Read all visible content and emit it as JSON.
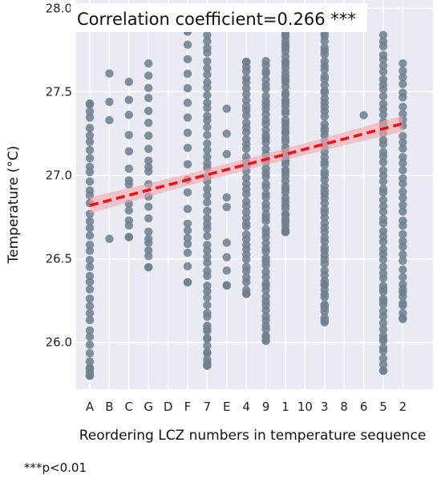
{
  "chart_data": {
    "type": "scatter",
    "title": "Correlation coefficient=0.266 ***",
    "xlabel": "Reordering LCZ numbers in temperature sequence",
    "ylabel": "Temperature (°C)",
    "categories": [
      "A",
      "B",
      "C",
      "G",
      "D",
      "F",
      "7",
      "E",
      "4",
      "9",
      "1",
      "10",
      "3",
      "8",
      "6",
      "5",
      "2"
    ],
    "ylim": [
      25.72,
      28.05
    ],
    "yticks": [
      26.0,
      26.5,
      27.0,
      27.5,
      28.0
    ],
    "ytick_labels": [
      "26.0",
      "26.5",
      "27.0",
      "27.5",
      "28.0"
    ],
    "grid": true,
    "point_color": "#6e8191",
    "series": [
      {
        "category": "A",
        "min": 25.8,
        "max": 27.43,
        "count": 40,
        "y_extra": [
          25.8,
          25.82,
          25.84,
          27.43
        ]
      },
      {
        "category": "B",
        "min": 26.62,
        "max": 27.61,
        "count": 4,
        "y_extra": [
          26.62,
          27.33,
          27.44,
          27.61
        ]
      },
      {
        "category": "C",
        "min": 26.63,
        "max": 27.56,
        "count": 14,
        "y_extra": [
          26.63,
          26.7,
          26.79,
          26.97
        ]
      },
      {
        "category": "G",
        "min": 26.45,
        "max": 27.67,
        "count": 22,
        "y_extra": [
          26.45,
          26.55,
          26.62,
          27.05
        ]
      },
      {
        "category": "D",
        "min": null,
        "max": null,
        "count": 0,
        "y_extra": []
      },
      {
        "category": "F",
        "min": 26.36,
        "max": 27.87,
        "count": 22,
        "y_extra": [
          26.36,
          26.59,
          26.67,
          27.87
        ]
      },
      {
        "category": "7",
        "min": 25.86,
        "max": 27.85,
        "count": 55,
        "y_extra": [
          25.86,
          25.88,
          25.94,
          26.02,
          26.08
        ]
      },
      {
        "category": "E",
        "min": 26.34,
        "max": 27.4,
        "count": 10,
        "y_extra": [
          26.34,
          26.43,
          26.51,
          26.81,
          27.25
        ]
      },
      {
        "category": "4",
        "min": 26.29,
        "max": 27.68,
        "count": 45,
        "y_extra": [
          26.29,
          27.68
        ]
      },
      {
        "category": "9",
        "min": 26.01,
        "max": 27.69,
        "count": 60,
        "y_extra": [
          26.01,
          26.04
        ]
      },
      {
        "category": "1",
        "min": 26.66,
        "max": 27.97,
        "count": 60,
        "y_extra": [
          26.66,
          26.72,
          27.97
        ]
      },
      {
        "category": "10",
        "min": null,
        "max": null,
        "count": 0,
        "y_extra": []
      },
      {
        "category": "3",
        "min": 26.12,
        "max": 28.0,
        "count": 70,
        "y_extra": [
          26.12,
          26.22,
          26.35
        ]
      },
      {
        "category": "8",
        "min": null,
        "max": null,
        "count": 0,
        "y_extra": []
      },
      {
        "category": "6",
        "min": 27.36,
        "max": 27.36,
        "count": 1,
        "y_extra": [
          27.36
        ]
      },
      {
        "category": "5",
        "min": 25.83,
        "max": 27.84,
        "count": 60,
        "y_extra": [
          25.83,
          26.02,
          26.25,
          26.32
        ]
      },
      {
        "category": "2",
        "min": 26.14,
        "max": 27.67,
        "count": 40,
        "y_extra": [
          26.14,
          26.22,
          26.3
        ]
      }
    ],
    "trend": {
      "color": "#e8141c",
      "dash": true,
      "x_start": "A",
      "x_end": "2",
      "y_start": 26.82,
      "y_end": 27.31,
      "ci_color": "#f4a5ab"
    }
  },
  "footnote": "***p<0.01"
}
